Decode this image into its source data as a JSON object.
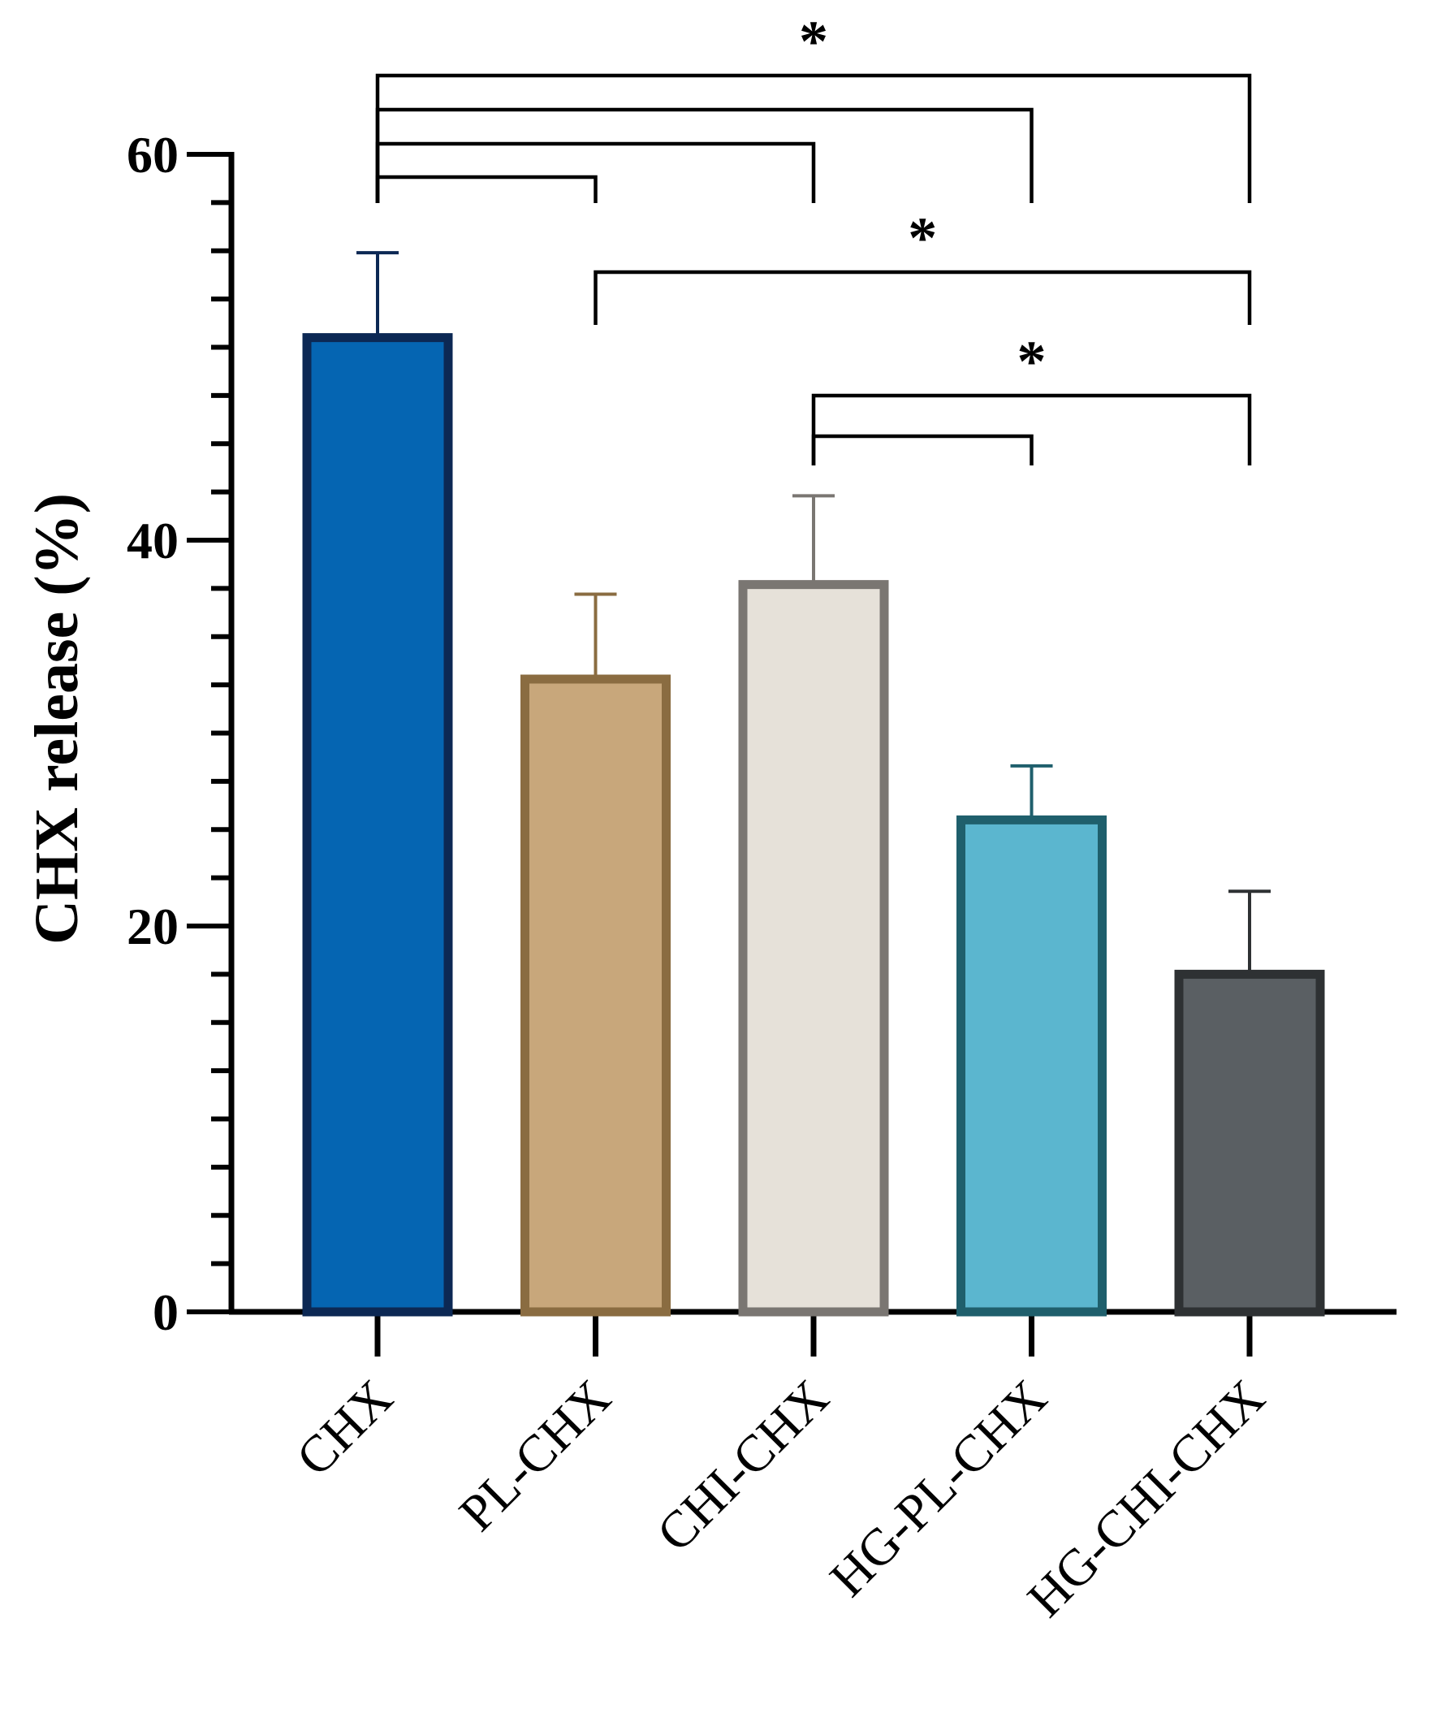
{
  "chart_data": {
    "type": "bar",
    "title": "",
    "xlabel": "",
    "ylabel": "CHX release (%)",
    "ylim": [
      0,
      60
    ],
    "yticks": [
      0,
      20,
      40,
      60
    ],
    "categories": [
      "CHX",
      "PL-CHX",
      "CHI-CHX",
      "HG-PL-CHX",
      "HG-CHI-CHX"
    ],
    "values": [
      50.5,
      32.8,
      37.7,
      25.5,
      17.5
    ],
    "errors": [
      4.4,
      4.4,
      4.6,
      2.8,
      4.3
    ],
    "fill_colors": [
      "#0565b2",
      "#c8a77b",
      "#e6e1d9",
      "#5bb6cf",
      "#5a5f63"
    ],
    "stroke_colors": [
      "#0c2854",
      "#8a6c41",
      "#7a7672",
      "#1f5f6c",
      "#2e3133"
    ],
    "significance": [
      {
        "from": "CHX",
        "to": "PL-CHX",
        "label": ""
      },
      {
        "from": "CHX",
        "to": "CHI-CHX",
        "label": ""
      },
      {
        "from": "CHX",
        "to": "HG-PL-CHX",
        "label": ""
      },
      {
        "from": "CHX",
        "to": "HG-CHI-CHX",
        "label": "*"
      },
      {
        "from": "PL-CHX",
        "to": "HG-CHI-CHX",
        "label": "*"
      },
      {
        "from": "CHI-CHX",
        "to": "HG-PL-CHX",
        "label": ""
      },
      {
        "from": "CHI-CHX",
        "to": "HG-CHI-CHX",
        "label": "*"
      }
    ]
  }
}
